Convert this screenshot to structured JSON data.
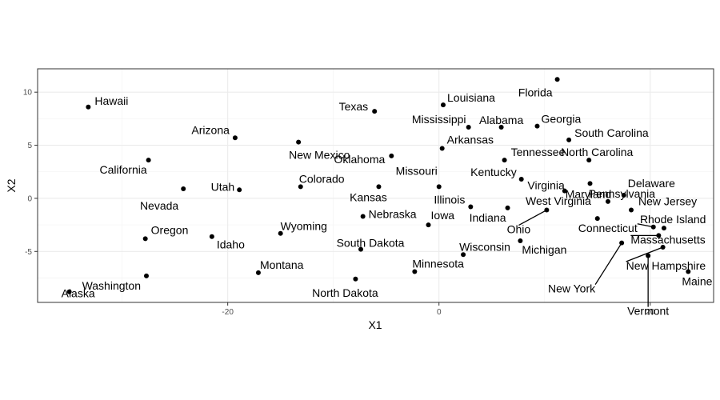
{
  "chart_data": {
    "type": "scatter",
    "xlabel": "X1",
    "ylabel": "X2",
    "xlim": [
      -38,
      26
    ],
    "ylim": [
      -9.8,
      12.2
    ],
    "x_ticks": [
      -20,
      0,
      20
    ],
    "y_ticks": [
      -5,
      0,
      5,
      10
    ],
    "grid": true,
    "point_color": "#000000",
    "points": [
      {
        "name": "Alabama",
        "x": 5.9,
        "y": 6.7
      },
      {
        "name": "Alaska",
        "x": -35.0,
        "y": -8.8
      },
      {
        "name": "Arizona",
        "x": -19.3,
        "y": 5.7
      },
      {
        "name": "Arkansas",
        "x": 0.3,
        "y": 4.7
      },
      {
        "name": "California",
        "x": -27.5,
        "y": 3.6
      },
      {
        "name": "Colorado",
        "x": -13.1,
        "y": 1.1
      },
      {
        "name": "Connecticut",
        "x": 20.3,
        "y": -2.7
      },
      {
        "name": "Delaware",
        "x": 17.5,
        "y": 0.3
      },
      {
        "name": "Florida",
        "x": 11.2,
        "y": 11.2
      },
      {
        "name": "Georgia",
        "x": 9.3,
        "y": 6.8
      },
      {
        "name": "Hawaii",
        "x": -33.2,
        "y": 8.6
      },
      {
        "name": "Idaho",
        "x": -21.5,
        "y": -3.6
      },
      {
        "name": "Illinois",
        "x": 3.0,
        "y": -0.8
      },
      {
        "name": "Indiana",
        "x": 6.5,
        "y": -0.9
      },
      {
        "name": "Iowa",
        "x": -1.0,
        "y": -2.5
      },
      {
        "name": "Kansas",
        "x": -5.7,
        "y": 1.1
      },
      {
        "name": "Kentucky",
        "x": 7.8,
        "y": 1.8
      },
      {
        "name": "Louisiana",
        "x": 0.4,
        "y": 8.8
      },
      {
        "name": "Maine",
        "x": 23.6,
        "y": -6.9
      },
      {
        "name": "Maryland",
        "x": 14.3,
        "y": 1.4
      },
      {
        "name": "Massachusetts",
        "x": 20.8,
        "y": -3.5
      },
      {
        "name": "Michigan",
        "x": 7.7,
        "y": -4.0
      },
      {
        "name": "Minnesota",
        "x": -2.3,
        "y": -6.9
      },
      {
        "name": "Mississippi",
        "x": 2.8,
        "y": 6.7
      },
      {
        "name": "Missouri",
        "x": 0.0,
        "y": 1.1
      },
      {
        "name": "Montana",
        "x": -17.1,
        "y": -7.0
      },
      {
        "name": "Nebraska",
        "x": -7.2,
        "y": -1.7
      },
      {
        "name": "Nevada",
        "x": -24.2,
        "y": 0.9
      },
      {
        "name": "New Hampshire",
        "x": 21.2,
        "y": -4.6
      },
      {
        "name": "New Jersey",
        "x": 18.2,
        "y": -1.1
      },
      {
        "name": "New Mexico",
        "x": -13.3,
        "y": 5.3
      },
      {
        "name": "New York",
        "x": 17.3,
        "y": -4.2
      },
      {
        "name": "North Carolina",
        "x": 14.2,
        "y": 3.6
      },
      {
        "name": "North Dakota",
        "x": -7.9,
        "y": -7.6
      },
      {
        "name": "Ohio",
        "x": 10.2,
        "y": -1.1
      },
      {
        "name": "Oklahoma",
        "x": -4.5,
        "y": 4.0
      },
      {
        "name": "Oregon",
        "x": -27.8,
        "y": -3.8
      },
      {
        "name": "Pennsylvania",
        "x": 15.0,
        "y": -1.9
      },
      {
        "name": "Rhode Island",
        "x": 21.3,
        "y": -2.8
      },
      {
        "name": "South Carolina",
        "x": 12.3,
        "y": 5.5
      },
      {
        "name": "South Dakota",
        "x": -7.4,
        "y": -4.8
      },
      {
        "name": "Tennessee",
        "x": 6.2,
        "y": 3.6
      },
      {
        "name": "Texas",
        "x": -6.1,
        "y": 8.2
      },
      {
        "name": "Utah",
        "x": -18.9,
        "y": 0.8
      },
      {
        "name": "Vermont",
        "x": 19.8,
        "y": -5.4
      },
      {
        "name": "Virginia",
        "x": 11.9,
        "y": 0.7
      },
      {
        "name": "Washington",
        "x": -27.7,
        "y": -7.3
      },
      {
        "name": "West Virginia",
        "x": 16.0,
        "y": -0.3
      },
      {
        "name": "Wisconsin",
        "x": 2.3,
        "y": -5.3
      },
      {
        "name": "Wyoming",
        "x": -15.0,
        "y": -3.3
      }
    ]
  }
}
